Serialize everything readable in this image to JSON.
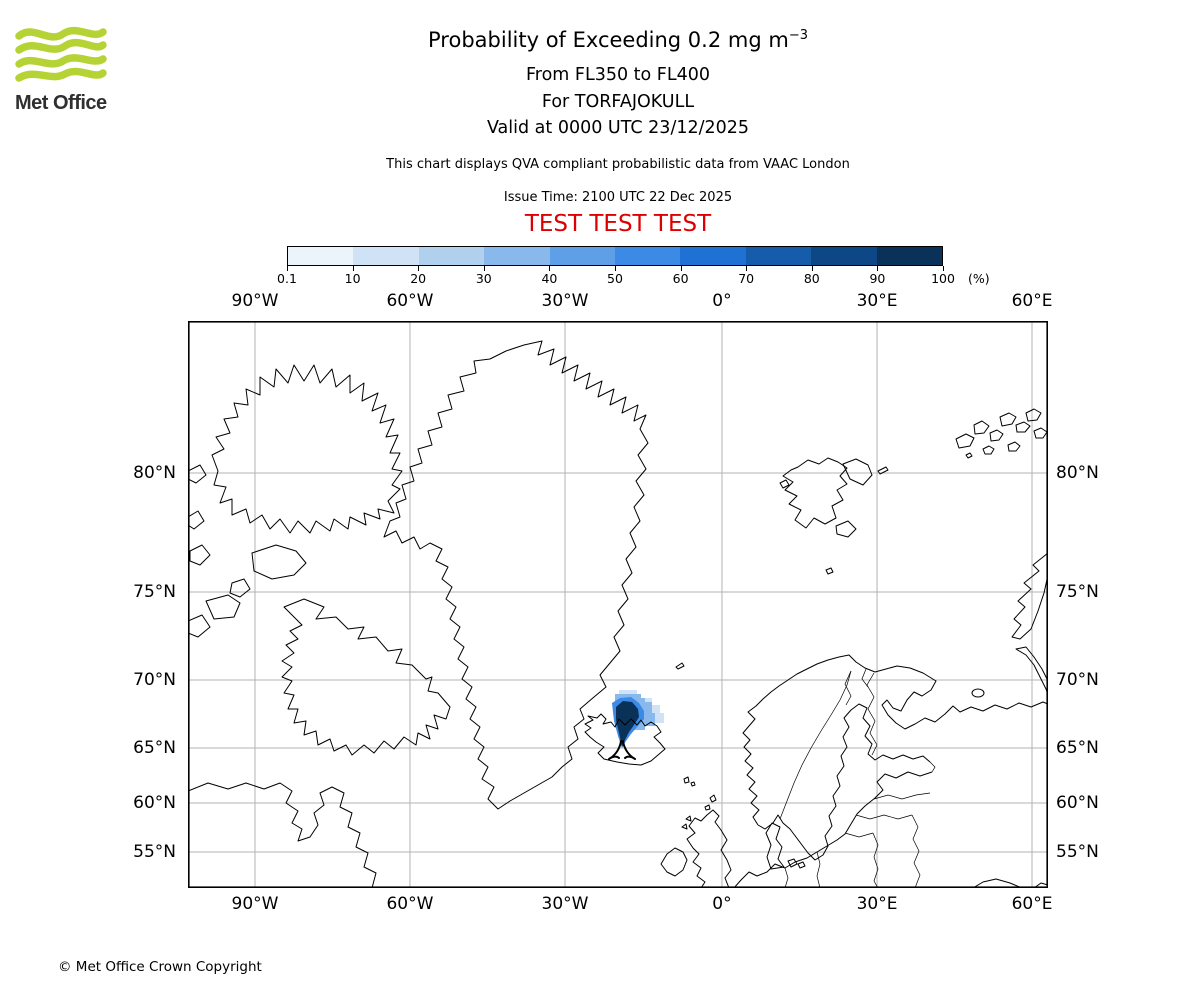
{
  "brand": {
    "logo_text": "Met Office",
    "logo_green": "#b5d334",
    "logo_text_color": "#2f2f2f"
  },
  "header": {
    "title_main": "Probability of Exceeding 0.2 mg m",
    "title_sup": "−3",
    "subtitle_lines": [
      "From FL350 to FL400",
      "For TORFAJOKULL",
      "Valid at 0000 UTC 23/12/2025"
    ],
    "note": "This chart displays QVA compliant probabilistic data from VAAC London",
    "issue_time": "Issue Time: 2100 UTC 22 Dec 2025",
    "test_banner": "TEST TEST TEST",
    "test_color": "#dd0000"
  },
  "colorbar": {
    "unit_label": "(%)",
    "tick_labels": [
      "0.1",
      "10",
      "20",
      "30",
      "40",
      "50",
      "60",
      "70",
      "80",
      "90",
      "100"
    ],
    "segment_colors": [
      "#ecf4fb",
      "#d0e2f5",
      "#b0d0ee",
      "#88b8ec",
      "#5f9fe8",
      "#3a8ae6",
      "#1f72d4",
      "#155cab",
      "#0e4786",
      "#0a3158"
    ]
  },
  "map": {
    "gridline_color": "#b3b3b3",
    "frame_color": "#000000",
    "coastline_color": "#000000",
    "lon_ticks": [
      {
        "label": "90°W",
        "pct": 7.79
      },
      {
        "label": "60°W",
        "pct": 25.81
      },
      {
        "label": "30°W",
        "pct": 43.84
      },
      {
        "label": "0°",
        "pct": 62.09
      },
      {
        "label": "30°E",
        "pct": 80.12
      },
      {
        "label": "60°E",
        "pct": 98.14
      }
    ],
    "lat_ticks": [
      {
        "label": "80°N",
        "pct": 26.81
      },
      {
        "label": "75°N",
        "pct": 47.8
      },
      {
        "label": "70°N",
        "pct": 63.32
      },
      {
        "label": "65°N",
        "pct": 75.31
      },
      {
        "label": "60°N",
        "pct": 85.01
      },
      {
        "label": "55°N",
        "pct": 93.65
      }
    ],
    "plume": {
      "layer_colors": [
        "#d0e2f5",
        "#88b8ec",
        "#3a8ae6",
        "#0a3158"
      ],
      "volcano_marker_color": "#000000"
    }
  },
  "footer": {
    "copyright": "© Met Office Crown Copyright"
  },
  "chart_data": {
    "type": "map",
    "title": "Probability of Exceeding 0.2 mg m−3",
    "subtitle": "From FL350 to FL400, For TORFAJOKULL, Valid at 0000 UTC 23/12/2025",
    "projection_note": "North Atlantic map, straight graticule, Mercator-like latitude spacing",
    "x_axis": {
      "ticks": [
        "90°W",
        "60°W",
        "30°W",
        "0°",
        "30°E",
        "60°E"
      ],
      "range_deg": [
        -103,
        63
      ]
    },
    "y_axis": {
      "ticks": [
        "80°N",
        "75°N",
        "70°N",
        "65°N",
        "60°N",
        "55°N"
      ],
      "range_deg": [
        50.5,
        84
      ]
    },
    "colorbar": {
      "levels_percent": [
        0.1,
        10,
        20,
        30,
        40,
        50,
        60,
        70,
        80,
        90,
        100
      ],
      "unit": "%"
    },
    "plume": {
      "description": "Ash-cloud exceedance-probability plume extending north-northeast from the volcano over Iceland",
      "max_band_percent": "90-100",
      "approx_lon_range": [
        "21°W",
        "12°W"
      ],
      "approx_lat_range": [
        "63.5°N",
        "67.5°N"
      ]
    },
    "volcano": {
      "name": "TORFAJOKULL",
      "marker": "open triangle",
      "approx_position": "19°W, 64°N"
    }
  }
}
